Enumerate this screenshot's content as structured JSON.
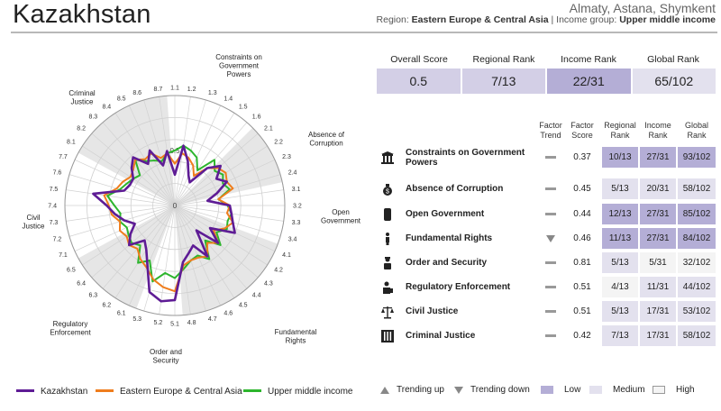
{
  "header": {
    "country": "Kazakhstan",
    "cities": "Almaty, Astana, Shymkent",
    "region_label": "Region:",
    "region": "Eastern Europe & Central Asia",
    "separator": "|",
    "income_label": "Income group:",
    "income_group": "Upper middle income"
  },
  "scores": {
    "headers": [
      "Overall Score",
      "Regional Rank",
      "Income Rank",
      "Global Rank"
    ],
    "values": [
      "0.5",
      "7/13",
      "22/31",
      "65/102"
    ],
    "shades": [
      "#d3cfe6",
      "#d3cfe6",
      "#b4aed6",
      "#e3e1ee"
    ]
  },
  "factor_table": {
    "headers": {
      "trend": "Factor Trend",
      "score": "Factor Score",
      "regional": "Regional Rank",
      "income": "Income Rank",
      "global": "Global Rank"
    },
    "rows": [
      {
        "name": "Constraints on Government Powers",
        "icon": "courthouse-icon",
        "trend": "flat",
        "score": "0.37",
        "regional": "10/13",
        "income": "27/31",
        "global": "93/102",
        "shades": [
          "low",
          "low",
          "low"
        ]
      },
      {
        "name": "Absence of Corruption",
        "icon": "money-bag-icon",
        "trend": "flat",
        "score": "0.45",
        "regional": "5/13",
        "income": "20/31",
        "global": "58/102",
        "shades": [
          "medium",
          "medium",
          "medium"
        ]
      },
      {
        "name": "Open Government",
        "icon": "document-icon",
        "trend": "flat",
        "score": "0.44",
        "regional": "12/13",
        "income": "27/31",
        "global": "85/102",
        "shades": [
          "low",
          "low",
          "low"
        ]
      },
      {
        "name": "Fundamental Rights",
        "icon": "person-icon",
        "trend": "down",
        "score": "0.46",
        "regional": "11/13",
        "income": "27/31",
        "global": "84/102",
        "shades": [
          "low",
          "low",
          "low"
        ]
      },
      {
        "name": "Order and Security",
        "icon": "security-guard-icon",
        "trend": "flat",
        "score": "0.81",
        "regional": "5/13",
        "income": "5/31",
        "global": "32/102",
        "shades": [
          "medium",
          "high",
          "high"
        ]
      },
      {
        "name": "Regulatory Enforcement",
        "icon": "inspector-icon",
        "trend": "flat",
        "score": "0.51",
        "regional": "4/13",
        "income": "11/31",
        "global": "44/102",
        "shades": [
          "high",
          "medium",
          "medium"
        ]
      },
      {
        "name": "Civil Justice",
        "icon": "scales-icon",
        "trend": "flat",
        "score": "0.51",
        "regional": "5/13",
        "income": "17/31",
        "global": "53/102",
        "shades": [
          "medium",
          "medium",
          "medium"
        ]
      },
      {
        "name": "Criminal Justice",
        "icon": "prison-icon",
        "trend": "flat",
        "score": "0.42",
        "regional": "7/13",
        "income": "17/31",
        "global": "58/102",
        "shades": [
          "medium",
          "medium",
          "medium"
        ]
      }
    ]
  },
  "rank_colors": {
    "low": "#b4aed6",
    "medium": "#e3e1ee",
    "high": "#f4f4f4"
  },
  "keys": {
    "trending_up": "Trending up",
    "trending_down": "Trending down",
    "low": "Low",
    "medium": "Medium",
    "high": "High"
  },
  "chart_data": {
    "type": "radar",
    "rmax": 1,
    "grid_rings": [
      0.2,
      0.4,
      0.6,
      0.8,
      1.0
    ],
    "ring_labels": [
      {
        "r": 0,
        "label": "0"
      },
      {
        "r": 0.5,
        "label": "0.5"
      }
    ],
    "subfactors": [
      "1.1",
      "1.2",
      "1.3",
      "1.4",
      "1.5",
      "1.6",
      "2.1",
      "2.2",
      "2.3",
      "2.4",
      "3.1",
      "3.2",
      "3.3",
      "3.4",
      "4.1",
      "4.2",
      "4.3",
      "4.4",
      "4.5",
      "4.6",
      "4.7",
      "4.8",
      "5.1",
      "5.2",
      "5.3",
      "6.1",
      "6.2",
      "6.3",
      "6.4",
      "6.5",
      "7.1",
      "7.2",
      "7.3",
      "7.4",
      "7.5",
      "7.6",
      "7.7",
      "8.1",
      "8.2",
      "8.3",
      "8.4",
      "8.5",
      "8.6",
      "8.7"
    ],
    "factors": [
      {
        "label": "Constraints on Government Powers",
        "start": 0,
        "count": 6,
        "shaded": false
      },
      {
        "label": "Absence of Corruption",
        "start": 6,
        "count": 4,
        "shaded": true
      },
      {
        "label": "Open Government",
        "start": 10,
        "count": 4,
        "shaded": false
      },
      {
        "label": "Fundamental Rights",
        "start": 14,
        "count": 8,
        "shaded": true
      },
      {
        "label": "Order and Security",
        "start": 22,
        "count": 3,
        "shaded": false
      },
      {
        "label": "Regulatory Enforcement",
        "start": 25,
        "count": 5,
        "shaded": true
      },
      {
        "label": "Civil Justice",
        "start": 30,
        "count": 7,
        "shaded": false
      },
      {
        "label": "Criminal Justice",
        "start": 37,
        "count": 7,
        "shaded": true
      }
    ],
    "series": [
      {
        "name": "Upper middle income",
        "color": "#2db52d",
        "values": [
          0.5,
          0.55,
          0.52,
          0.48,
          0.38,
          0.55,
          0.48,
          0.52,
          0.48,
          0.52,
          0.4,
          0.48,
          0.52,
          0.5,
          0.52,
          0.45,
          0.55,
          0.42,
          0.58,
          0.5,
          0.52,
          0.58,
          0.66,
          0.62,
          0.72,
          0.55,
          0.62,
          0.48,
          0.52,
          0.5,
          0.48,
          0.52,
          0.5,
          0.55,
          0.62,
          0.52,
          0.48,
          0.45,
          0.42,
          0.55,
          0.48,
          0.45,
          0.42,
          0.48
        ]
      },
      {
        "name": "Eastern Europe & Central Asia",
        "color": "#ef7d1d",
        "values": [
          0.38,
          0.48,
          0.45,
          0.4,
          0.32,
          0.45,
          0.52,
          0.55,
          0.52,
          0.55,
          0.4,
          0.5,
          0.48,
          0.55,
          0.5,
          0.42,
          0.52,
          0.45,
          0.55,
          0.52,
          0.52,
          0.55,
          0.78,
          0.75,
          0.7,
          0.62,
          0.58,
          0.52,
          0.55,
          0.52,
          0.55,
          0.52,
          0.58,
          0.6,
          0.65,
          0.55,
          0.52,
          0.48,
          0.5,
          0.55,
          0.5,
          0.52,
          0.45,
          0.48
        ]
      },
      {
        "name": "Kazakhstan",
        "color": "#5e1c95",
        "values": [
          0.28,
          0.55,
          0.42,
          0.3,
          0.25,
          0.45,
          0.55,
          0.45,
          0.52,
          0.4,
          0.3,
          0.5,
          0.52,
          0.55,
          0.6,
          0.38,
          0.52,
          0.3,
          0.55,
          0.4,
          0.45,
          0.52,
          0.86,
          0.88,
          0.82,
          0.6,
          0.48,
          0.42,
          0.55,
          0.48,
          0.4,
          0.48,
          0.55,
          0.62,
          0.75,
          0.48,
          0.45,
          0.45,
          0.52,
          0.58,
          0.45,
          0.55,
          0.38,
          0.5
        ]
      }
    ],
    "legend": [
      "Kazakhstan",
      "Eastern Europe & Central Asia",
      "Upper middle income"
    ],
    "legend_colors": [
      "#5e1c95",
      "#ef7d1d",
      "#2db52d"
    ]
  }
}
